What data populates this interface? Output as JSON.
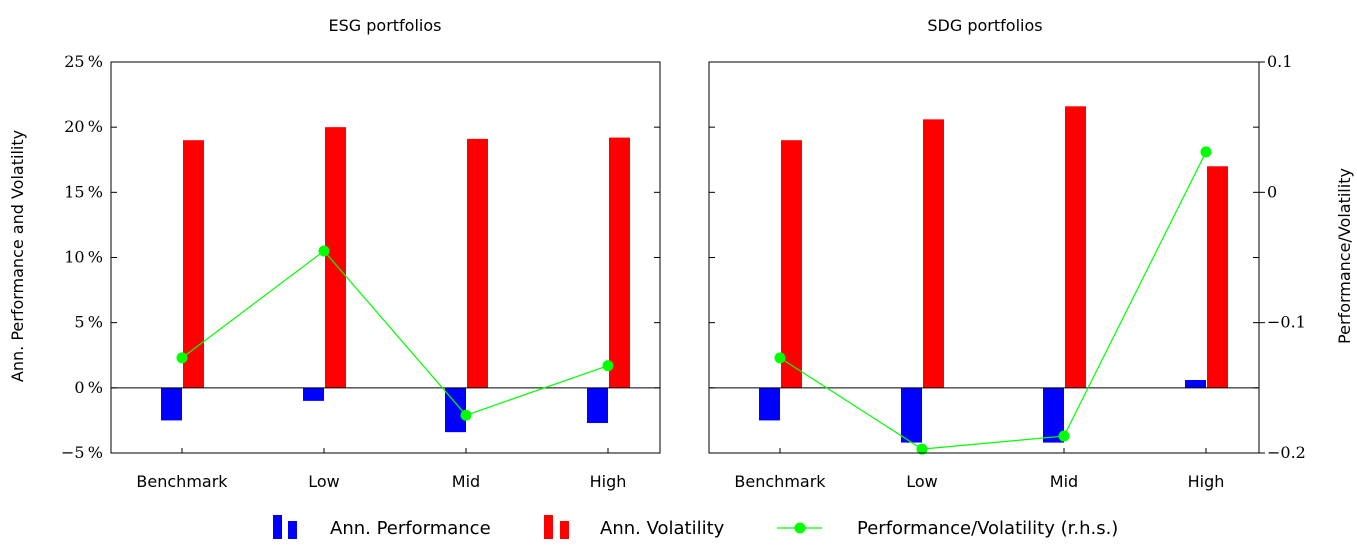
{
  "chart_data": [
    {
      "type": "bar",
      "title": "ESG portfolios",
      "categories": [
        "Benchmark",
        "Low",
        "Mid",
        "High"
      ],
      "ylabel": "Ann. Performance and Volatility",
      "ylim": [
        -5,
        25
      ],
      "y_ticks": [
        "−5 %",
        "0 %",
        "5 %",
        "10 %",
        "15 %",
        "20 %",
        "25 %"
      ],
      "y_tick_values": [
        -5,
        0,
        5,
        10,
        15,
        20,
        25
      ],
      "series": [
        {
          "name": "Ann. Performance",
          "color": "#0000ff",
          "values": [
            -2.5,
            -1.0,
            -3.4,
            -2.7
          ]
        },
        {
          "name": "Ann. Volatility",
          "color": "#ff0000",
          "values": [
            19.0,
            20.0,
            19.1,
            19.2
          ]
        },
        {
          "name": "Performance/Volatility (r.h.s.)",
          "color": "#00ff00",
          "type": "line",
          "axis": "right",
          "values": [
            -0.127,
            -0.045,
            -0.171,
            -0.133
          ]
        }
      ],
      "ylim_right": [
        -0.2,
        0.1
      ]
    },
    {
      "type": "bar",
      "title": "SDG portfolios",
      "categories": [
        "Benchmark",
        "Low",
        "Mid",
        "High"
      ],
      "y2label": "Performance/Volatility",
      "ylim": [
        -5,
        25
      ],
      "ylim_right": [
        -0.2,
        0.1
      ],
      "y2_ticks": [
        "−0.2",
        "−0.1",
        "0",
        "0.1"
      ],
      "y2_tick_values": [
        -0.2,
        -0.1,
        0,
        0.1
      ],
      "series": [
        {
          "name": "Ann. Performance",
          "color": "#0000ff",
          "values": [
            -2.5,
            -4.2,
            -4.2,
            0.6
          ]
        },
        {
          "name": "Ann. Volatility",
          "color": "#ff0000",
          "values": [
            19.0,
            20.6,
            21.6,
            17.0
          ]
        },
        {
          "name": "Performance/Volatility (r.h.s.)",
          "color": "#00ff00",
          "type": "line",
          "axis": "right",
          "values": [
            -0.127,
            -0.197,
            -0.187,
            0.031
          ]
        }
      ]
    }
  ],
  "legend": {
    "placement": "bottom",
    "items": [
      "Ann. Performance",
      "Ann. Volatility",
      "Performance/Volatility (r.h.s.)"
    ]
  },
  "colors": {
    "performance": "#0000ff",
    "volatility": "#ff0000",
    "ratio": "#00ff00"
  }
}
